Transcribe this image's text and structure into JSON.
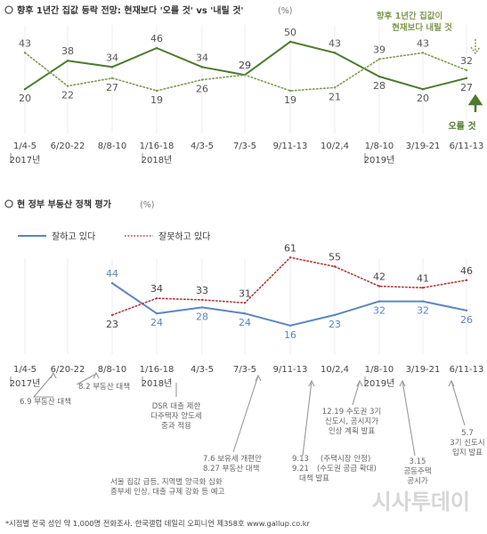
{
  "chart_data": [
    {
      "type": "line",
      "title": "향후 1년간 집값 등락 전망: 현재보다 '오를 것' vs '내릴 것'",
      "unit_label": "(%)",
      "categories": [
        "1/4-5",
        "6/20-22",
        "8/8-10",
        "1/16-18",
        "4/3-5",
        "7/3-5",
        "9/11-13",
        "10/2,4",
        "1/8-10",
        "3/19-21",
        "6/11-13"
      ],
      "year_labels": [
        {
          "index": 0,
          "label": "2017년"
        },
        {
          "index": 3,
          "label": "2018년"
        },
        {
          "index": 8,
          "label": "2019년"
        }
      ],
      "ylim": [
        10,
        55
      ],
      "series": [
        {
          "name": "오를 것",
          "style": "solid",
          "color": "#4d7a2e",
          "values": [
            20,
            38,
            34,
            46,
            34,
            29,
            50,
            43,
            28,
            20,
            27
          ]
        },
        {
          "name": "현재보다 내릴 것",
          "style": "dotted",
          "color": "#7f9a52",
          "values": [
            43,
            22,
            27,
            19,
            26,
            29,
            19,
            21,
            39,
            43,
            32
          ]
        }
      ],
      "annotations": {
        "fall_label_line1": "향후 1년간 집값이",
        "fall_label_line2": "현재보다 내릴 것",
        "rise_label": "오를 것"
      }
    },
    {
      "type": "line",
      "title": "현 정부 부동산 정책 평가",
      "unit_label": "(%)",
      "categories": [
        "1/4-5",
        "6/20-22",
        "8/8-10",
        "1/16-18",
        "4/3-5",
        "7/3-5",
        "9/11-13",
        "10/2,4",
        "1/8-10",
        "3/19-21",
        "6/11-13"
      ],
      "year_labels": [
        {
          "index": 0,
          "label": "2017년"
        },
        {
          "index": 3,
          "label": "2018년"
        },
        {
          "index": 8,
          "label": "2019년"
        }
      ],
      "ylim": [
        10,
        70
      ],
      "series": [
        {
          "name": "잘하고 있다",
          "style": "solid",
          "color": "#5b86bf",
          "values": [
            null,
            null,
            44,
            24,
            28,
            24,
            16,
            23,
            32,
            32,
            26
          ]
        },
        {
          "name": "잘못하고 있다",
          "style": "dotted",
          "color": "#b03a3a",
          "values": [
            null,
            null,
            23,
            34,
            33,
            31,
            61,
            55,
            42,
            41,
            46
          ]
        }
      ],
      "events": [
        {
          "text": "6.9 부동산 대책",
          "anchor_index": 1.35
        },
        {
          "text": "8.2 부동산 대책",
          "anchor_index": 2.05
        },
        {
          "text": "DSR 대출 제한 다주택자 양도세 중과 적용",
          "anchor_index": 3.6
        },
        {
          "text": "7.6 보유세 개편안 8.27 부동산 대책 서울 집값 급등, 지역별 양극화 심화 종부세 인상, 대출 규제 강화 등 예고",
          "anchor_index": 5.7
        },
        {
          "text": "9.13 9.21 (주택시장 안정) (수도권 공급 확대) 대책 발표",
          "anchor_index": 6.6
        },
        {
          "text": "12.19 수도권 3기 신도시, 공시지가 인상 계획 발표",
          "anchor_index": 7.6
        },
        {
          "text": "3.15 공동주택 공시가",
          "anchor_index": 8.7
        },
        {
          "text": "5.7 3기 신도시 입지 발표",
          "anchor_index": 9.7
        }
      ]
    }
  ],
  "chart1": {
    "title": "향후 1년간 집값 등락 전망: 현재보다 '오를 것' vs '내릴 것'",
    "unit": "(%)"
  },
  "chart2": {
    "title": "현 정부 부동산 정책 평가",
    "unit": "(%)",
    "legend_good": "잘하고 있다",
    "legend_bad": "잘못하고 있다"
  },
  "events": {
    "e1": "6.9 부동산 대책",
    "e2": "8.2 부동산 대책",
    "e3_l1": "DSR 대출 제한",
    "e3_l2": "다주택자 양도세",
    "e3_l3": "중과 적용",
    "e4_l1": "7.6  보유세 개편안",
    "e4_l2": "8.27 부동산 대책",
    "e4_l3": "서울 집값 급등, 지역별 양극화 심화",
    "e4_l4": "종부세 인상, 대출 규제 강화 등 예고",
    "e5_l1": "9.13",
    "e5_l2": "9.21",
    "e5_l3": "(주택시장 안정)",
    "e5_l4": "(수도권 공급 확대)",
    "e5_l5": "대책 발표",
    "e6_l1": "12.19 수도권 3기",
    "e6_l2": "신도시, 공시지가",
    "e6_l3": "인상 계획 발표",
    "e7_l1": "3.15",
    "e7_l2": "공동주택",
    "e7_l3": "공시가",
    "e8_l1": "5.7",
    "e8_l2": "3기 신도시",
    "e8_l3": "입지 발표"
  },
  "footer": {
    "note": "*시점별 전국 성인 약 1,000명 전화조사. 한국갤럽 데일리 오피니언 제358호 www.gallup.co.kr",
    "watermark": "시사투데이"
  },
  "colors": {
    "rise": "#4d7a2e",
    "fall": "#7f9a52",
    "good": "#5b86bf",
    "bad": "#b03a3a",
    "arrow": "#999999"
  }
}
